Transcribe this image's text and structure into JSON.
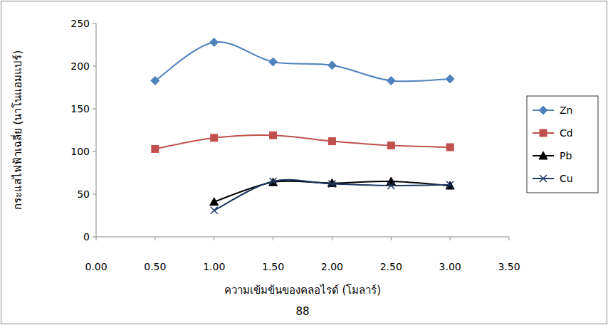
{
  "chart_data": {
    "type": "line",
    "x_label": "ความเข้มข้นของคลอไรด์ (โมลาร์)",
    "y_label": "กระแสไฟฟ้าเฉลี่ย (นาโนแอมแปร์)",
    "annotations": [
      "88"
    ],
    "x": [
      0.5,
      1.0,
      1.5,
      2.0,
      2.5,
      3.0
    ],
    "series": [
      {
        "name": "Zn",
        "color": "#4f81bd",
        "marker": "diamond",
        "line_style": "smooth",
        "values": [
          183,
          228,
          205,
          201,
          183,
          185
        ]
      },
      {
        "name": "Cd",
        "color": "#c0504d",
        "marker": "square",
        "line_style": "smooth",
        "values": [
          103,
          116,
          119,
          112,
          107,
          105
        ]
      },
      {
        "name": "Pb",
        "color": "#000000",
        "marker": "triangle",
        "line_style": "smooth",
        "values": [
          null,
          41,
          64,
          63,
          65,
          60
        ]
      },
      {
        "name": "Cu",
        "color": "#1f3864",
        "marker": "x",
        "line_style": "smooth",
        "values": [
          null,
          31,
          65,
          62,
          60,
          61
        ]
      }
    ],
    "xlim": [
      0,
      3.5
    ],
    "xticks": [
      {
        "value": 0,
        "label": "0.00"
      },
      {
        "value": 0.5,
        "label": "0.50"
      },
      {
        "value": 1,
        "label": "1.00"
      },
      {
        "value": 1.5,
        "label": "1.50"
      },
      {
        "value": 2,
        "label": "2.00"
      },
      {
        "value": 2.5,
        "label": "2.50"
      },
      {
        "value": 3,
        "label": "3.00"
      },
      {
        "value": 3.5,
        "label": "3.50"
      }
    ],
    "ylim": [
      0,
      250
    ],
    "yticks": [
      0,
      50,
      100,
      150,
      200,
      250
    ],
    "grid": false,
    "legend": "right"
  }
}
